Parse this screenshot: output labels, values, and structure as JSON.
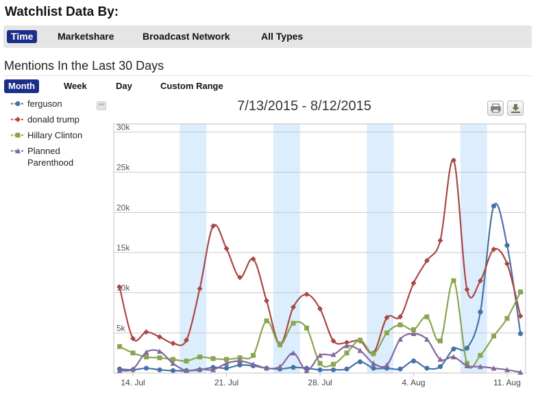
{
  "header": {
    "title": "Watchlist Data By:"
  },
  "data_tabs": [
    {
      "label": "Time",
      "active": true
    },
    {
      "label": "Marketshare",
      "active": false
    },
    {
      "label": "Broadcast Network",
      "active": false
    },
    {
      "label": "All Types",
      "active": false
    }
  ],
  "section": {
    "title": "Mentions In the Last 30 Days"
  },
  "range_tabs": [
    {
      "label": "Month",
      "active": true
    },
    {
      "label": "Week",
      "active": false
    },
    {
      "label": "Day",
      "active": false
    },
    {
      "label": "Custom Range",
      "active": false
    }
  ],
  "toolbar": {
    "print_icon": "print-icon",
    "download_icon": "download-icon",
    "legend_icon": "legend-export-icon"
  },
  "chart_data": {
    "type": "line",
    "title": "7/13/2015 - 8/12/2015",
    "xlabel": "",
    "ylabel": "",
    "x": [
      "2015-07-13",
      "2015-07-14",
      "2015-07-15",
      "2015-07-16",
      "2015-07-17",
      "2015-07-18",
      "2015-07-19",
      "2015-07-20",
      "2015-07-21",
      "2015-07-22",
      "2015-07-23",
      "2015-07-24",
      "2015-07-25",
      "2015-07-26",
      "2015-07-27",
      "2015-07-28",
      "2015-07-29",
      "2015-07-30",
      "2015-07-31",
      "2015-08-01",
      "2015-08-02",
      "2015-08-03",
      "2015-08-04",
      "2015-08-05",
      "2015-08-06",
      "2015-08-07",
      "2015-08-08",
      "2015-08-09",
      "2015-08-10",
      "2015-08-11",
      "2015-08-12"
    ],
    "x_ticks": [
      "14. Jul",
      "21. Jul",
      "28. Jul",
      "4. Aug",
      "11. Aug"
    ],
    "y_ticks": [
      "5k",
      "10k",
      "15k",
      "20k",
      "25k",
      "30k"
    ],
    "ylim": [
      0,
      30000
    ],
    "weekend_bands": [
      [
        "2015-07-18",
        "2015-07-19"
      ],
      [
        "2015-07-25",
        "2015-07-26"
      ],
      [
        "2015-08-01",
        "2015-08-02"
      ],
      [
        "2015-08-08",
        "2015-08-09"
      ]
    ],
    "grid": true,
    "legend_position": "left",
    "series": [
      {
        "name": "ferguson",
        "color": "#4572a7",
        "marker": "circle",
        "values": [
          500,
          400,
          600,
          400,
          300,
          300,
          400,
          700,
          600,
          1000,
          900,
          600,
          500,
          700,
          600,
          400,
          400,
          500,
          1400,
          600,
          600,
          500,
          1500,
          600,
          800,
          3000,
          3100,
          7600,
          20800,
          15900,
          4900
        ]
      },
      {
        "name": "donald trump",
        "color": "#aa4643",
        "marker": "diamond",
        "values": [
          10700,
          4300,
          5100,
          4500,
          3700,
          4100,
          10500,
          18300,
          15500,
          11900,
          14200,
          9000,
          3600,
          8200,
          9800,
          8000,
          4000,
          3800,
          4000,
          2500,
          6900,
          7000,
          11200,
          14000,
          16500,
          26500,
          10400,
          11500,
          15400,
          13600,
          7100
        ]
      },
      {
        "name": "Hillary Clinton",
        "color": "#89a54e",
        "marker": "square",
        "values": [
          3300,
          2500,
          2000,
          1900,
          1700,
          1500,
          2000,
          1800,
          1700,
          1900,
          2200,
          6500,
          3500,
          6200,
          5600,
          1200,
          1100,
          2500,
          4100,
          2400,
          5000,
          6000,
          5400,
          7000,
          4000,
          11500,
          1200,
          2200,
          4600,
          6800,
          10100
        ]
      },
      {
        "name": "Planned Parenthood",
        "color": "#80699b",
        "marker": "triangle",
        "values": [
          300,
          500,
          2600,
          2700,
          1200,
          300,
          500,
          400,
          1200,
          1500,
          1100,
          600,
          800,
          2500,
          300,
          2200,
          2300,
          3400,
          2800,
          1200,
          1000,
          4200,
          4900,
          4200,
          1700,
          2000,
          900,
          800,
          600,
          400,
          100
        ]
      }
    ]
  }
}
